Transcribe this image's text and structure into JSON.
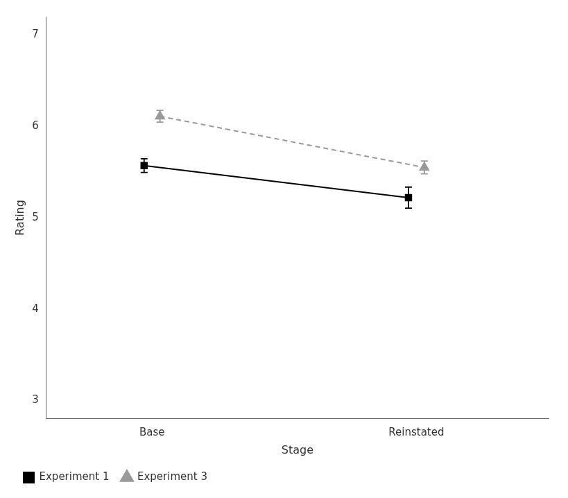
{
  "chart_data": {
    "type": "line",
    "xlabel": "Stage",
    "ylabel": "Rating",
    "xlim": [
      0.6,
      2.5
    ],
    "xticks": [
      {
        "value": 1,
        "label": "Base"
      },
      {
        "value": 2,
        "label": "Reinstated"
      }
    ],
    "ylim": [
      2.8,
      7.2
    ],
    "yticks": [
      3,
      4,
      5,
      6,
      7
    ],
    "grid": false,
    "legend": "lower left",
    "series": [
      {
        "name": "Experiment 1",
        "color": "#000000",
        "marker": "square",
        "line_style": "solid",
        "x": [
          0.97,
          1.97
        ],
        "values": [
          5.57,
          5.22
        ],
        "yerr": [
          0.075,
          0.115
        ]
      },
      {
        "name": "Experiment 3",
        "color": "#999999",
        "marker": "triangle",
        "line_style": "dashed",
        "x": [
          1.03,
          2.03
        ],
        "values": [
          6.11,
          5.55
        ],
        "yerr": [
          0.065,
          0.07
        ]
      }
    ]
  }
}
